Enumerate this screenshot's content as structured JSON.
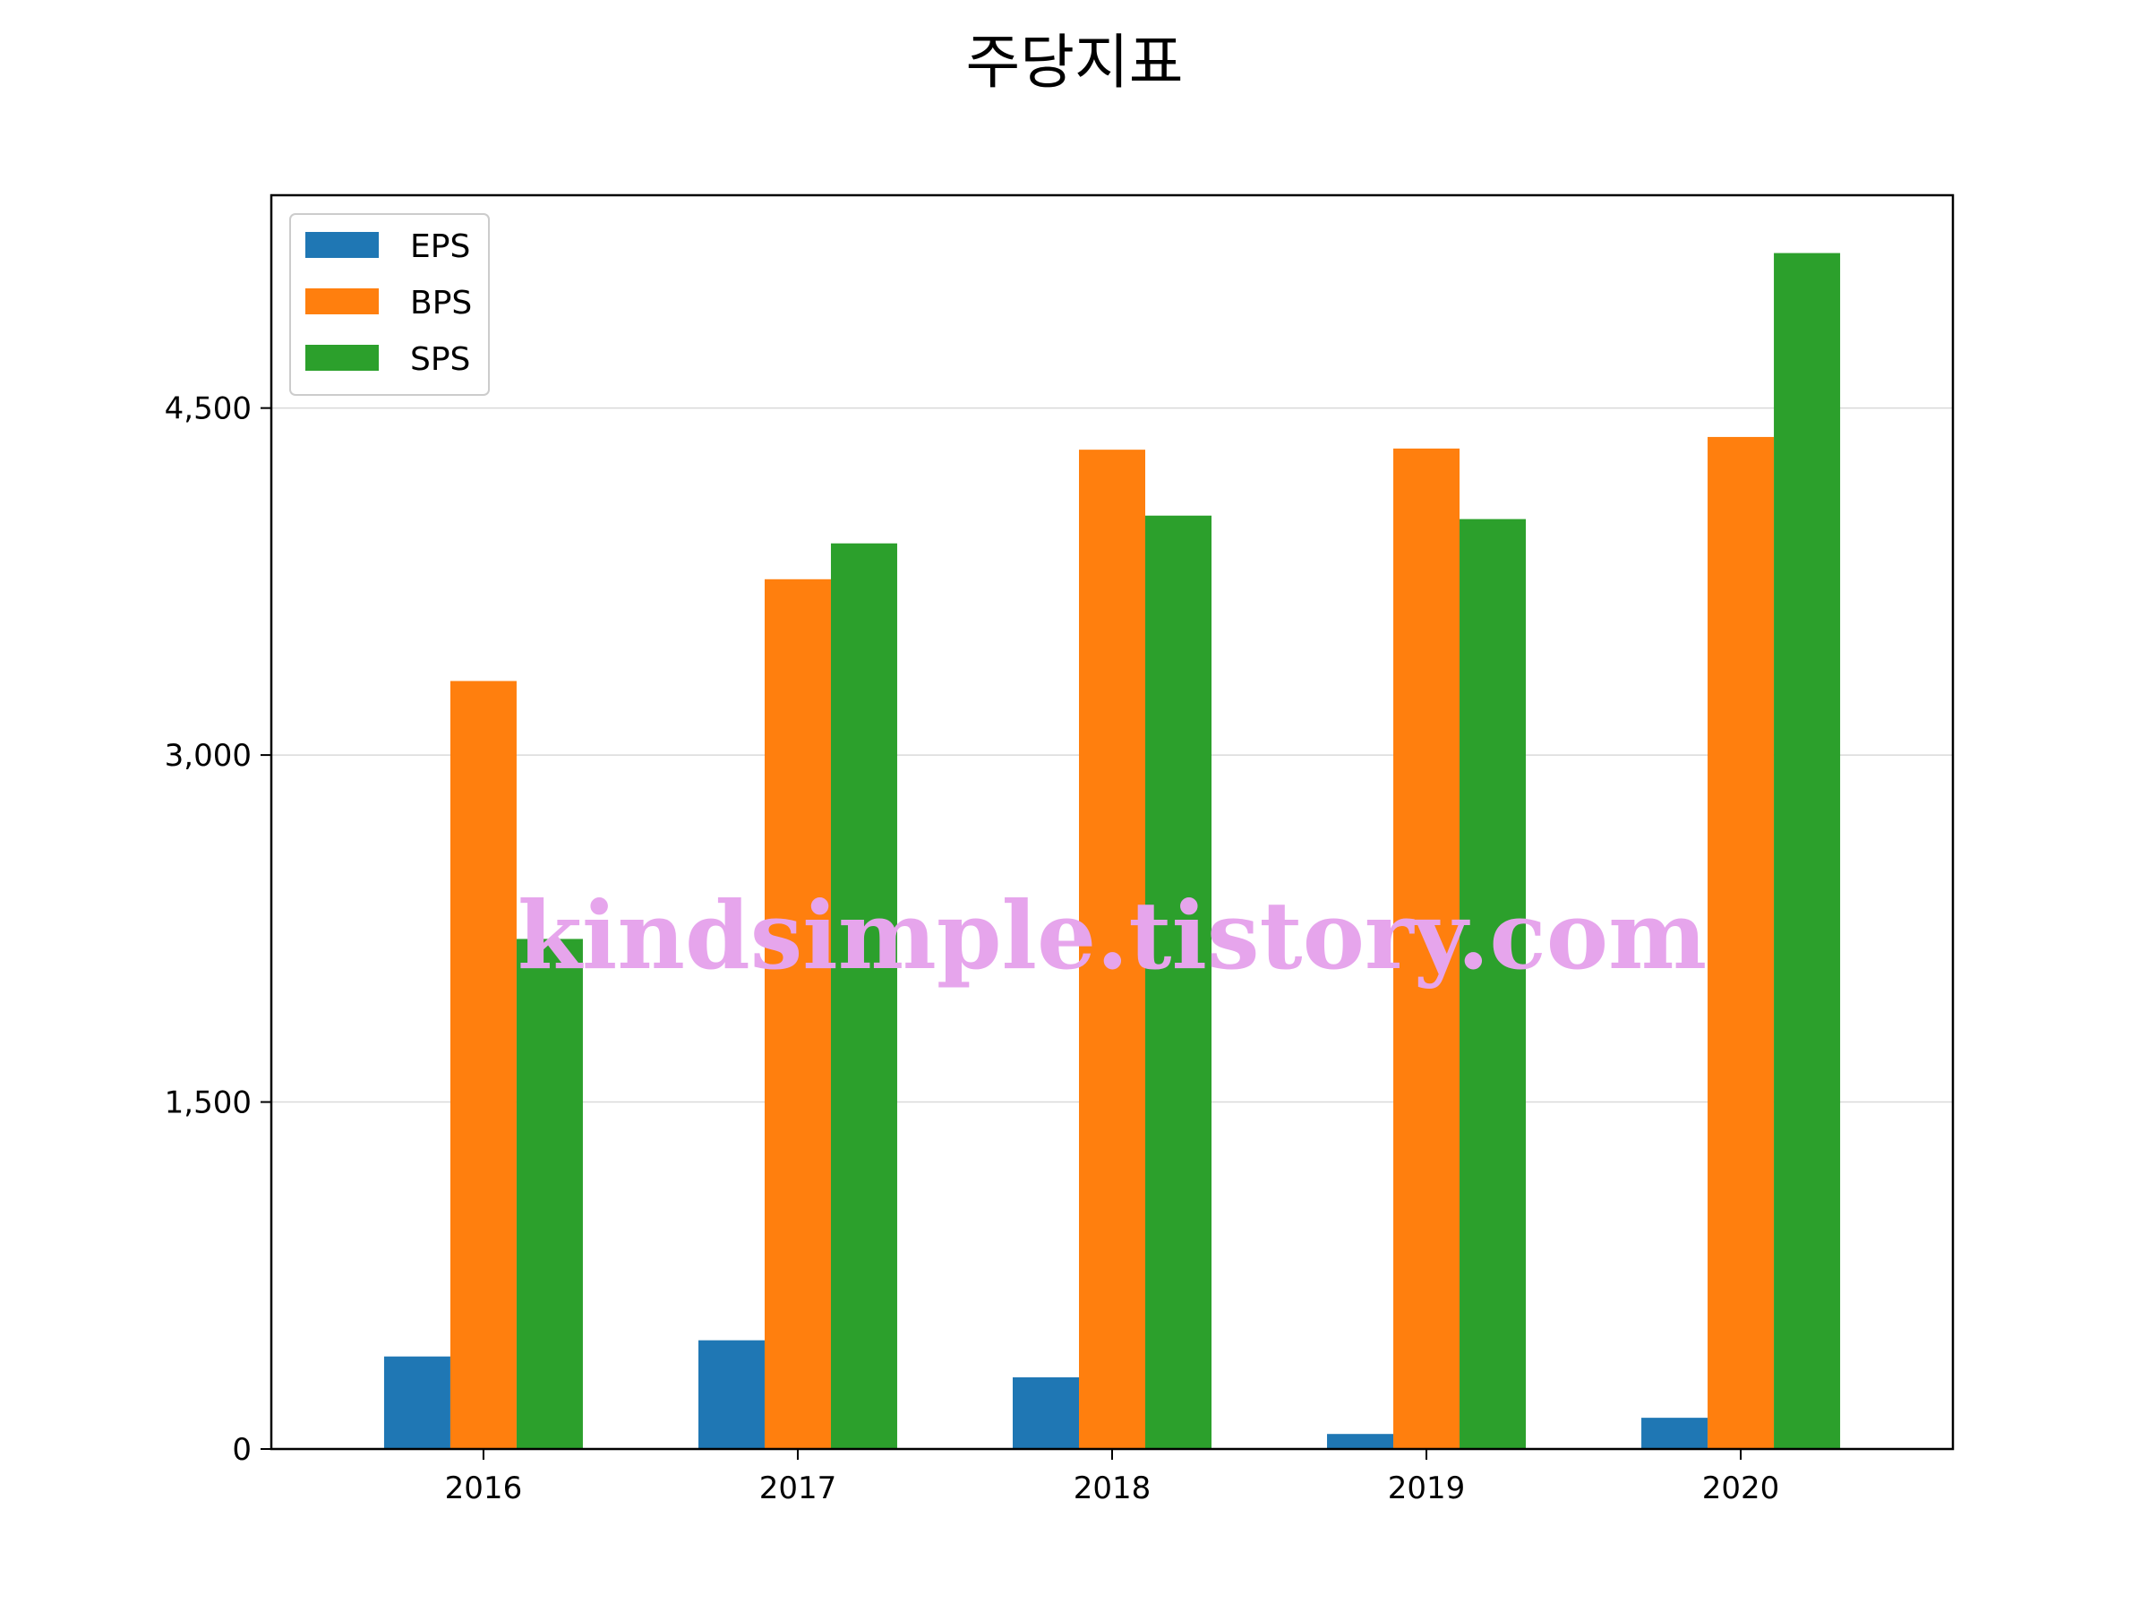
{
  "chart_data": {
    "type": "bar",
    "title": "주당지표",
    "xlabel": "",
    "ylabel": "",
    "categories": [
      "2016",
      "2017",
      "2018",
      "2019",
      "2020"
    ],
    "series": [
      {
        "name": "EPS",
        "color": "#1f77b4",
        "values": [
          400,
          470,
          310,
          65,
          135
        ]
      },
      {
        "name": "BPS",
        "color": "#ff7f0e",
        "values": [
          3320,
          3760,
          4320,
          4325,
          4375
        ]
      },
      {
        "name": "SPS",
        "color": "#2ca02c",
        "values": [
          2205,
          3915,
          4035,
          4020,
          5170
        ]
      }
    ],
    "ylim": [
      0,
      5420
    ],
    "yticks": [
      0,
      1500,
      3000,
      4500
    ],
    "ytick_labels": [
      "0",
      "1,500",
      "3,000",
      "4,500"
    ],
    "grid": "y",
    "legend_position": "top-left",
    "watermark": "kindsimple.tistory.com"
  }
}
